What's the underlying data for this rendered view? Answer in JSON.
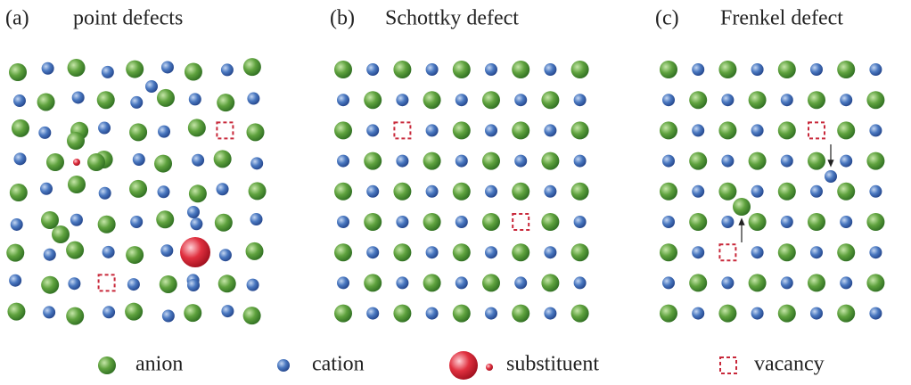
{
  "panels": [
    {
      "label": "(a)",
      "title": "point defects"
    },
    {
      "label": "(b)",
      "title": "Schottky defect"
    },
    {
      "label": "(c)",
      "title": "Frenkel defect"
    }
  ],
  "legend": [
    {
      "label": "anion"
    },
    {
      "label": "cation"
    },
    {
      "label": "substituent"
    },
    {
      "label": "vacancy"
    }
  ]
}
